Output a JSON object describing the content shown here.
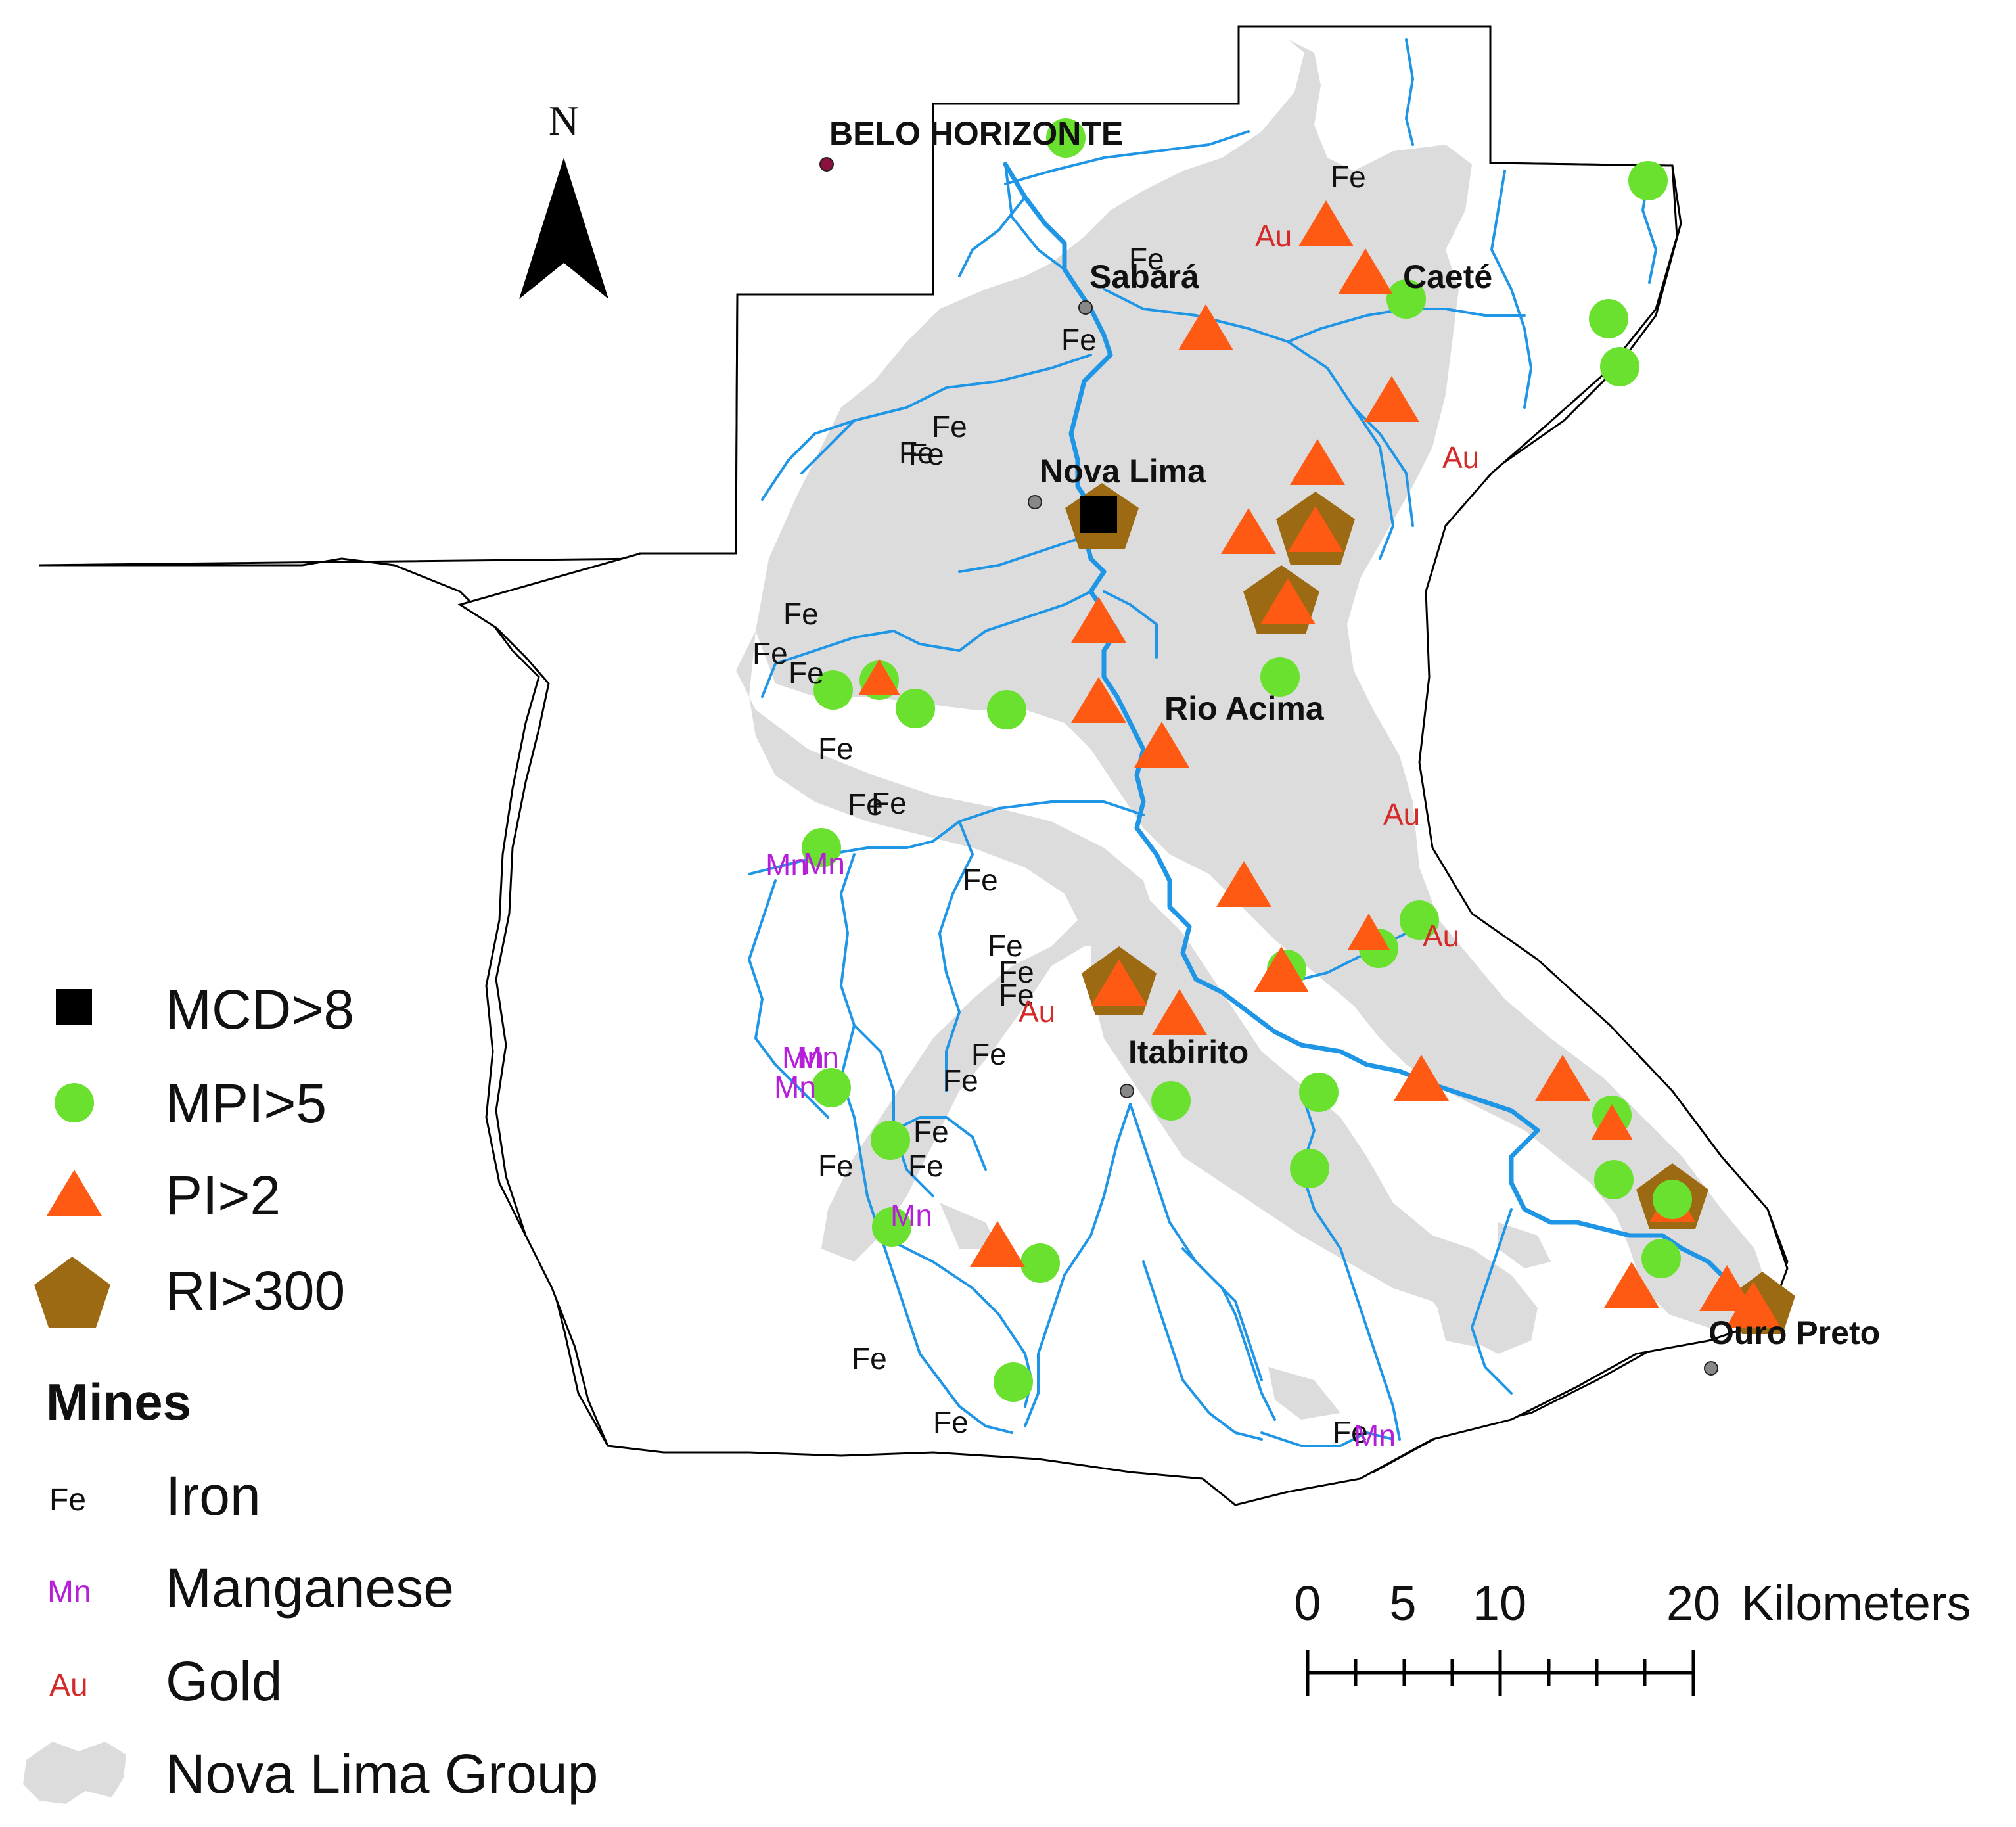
{
  "north_label": "N",
  "cities": {
    "belo_horizonte": "BELO HORIZONTE",
    "sabara": "Sabará",
    "caete": "Caeté",
    "nova_lima": "Nova Lima",
    "rio_acima": "Rio Acima",
    "itabirito": "Itabirito",
    "ouro_preto": "Ouro Preto"
  },
  "mine_codes": {
    "iron": "Fe",
    "manganese": "Mn",
    "gold": "Au"
  },
  "legend": {
    "mcd": "MCD>8",
    "mpi": "MPI>5",
    "pi": "PI>2",
    "ri": "RI>300",
    "mines_title": "Mines",
    "iron": "Iron",
    "manganese": "Manganese",
    "gold": "Gold",
    "nova_lima_group": "Nova Lima Group"
  },
  "scale_bar": {
    "ticks": [
      "0",
      "5",
      "10",
      "20"
    ],
    "unit": "Kilometers"
  },
  "colors": {
    "mpi": "#6be12f",
    "pi": "#ff5a14",
    "ri": "#9b6a12",
    "mcd": "#000000",
    "river": "#1f95e6",
    "nova_lima_group": "#dcdcdc",
    "manganese_text": "#b61fd9",
    "gold_text": "#d42a2a"
  }
}
